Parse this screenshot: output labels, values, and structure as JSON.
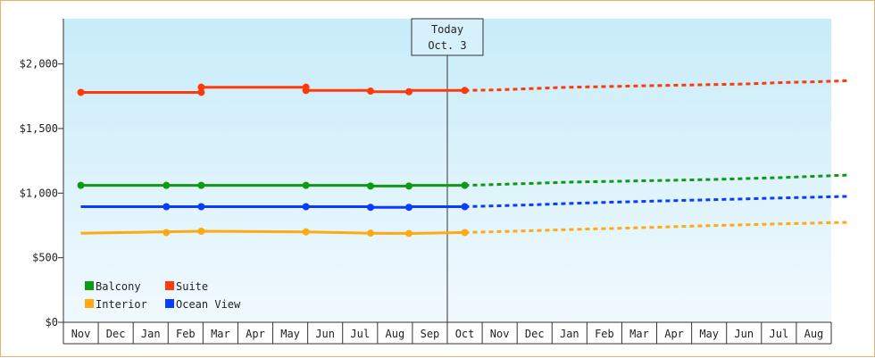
{
  "chart_data": {
    "type": "line",
    "title": "",
    "xlabel": "",
    "ylabel": "",
    "ylim": [
      0,
      2350
    ],
    "y_ticks": [
      {
        "value": 0,
        "label": "$0"
      },
      {
        "value": 500,
        "label": "$500"
      },
      {
        "value": 1000,
        "label": "$1,000"
      },
      {
        "value": 1500,
        "label": "$1,500"
      },
      {
        "value": 2000,
        "label": "$2,000"
      }
    ],
    "month_labels": [
      "Nov",
      "Dec",
      "Jan",
      "Feb",
      "Mar",
      "Apr",
      "May",
      "Jun",
      "Jul",
      "Aug",
      "Sep",
      "Oct",
      "Nov",
      "Dec",
      "Jan",
      "Feb",
      "Mar",
      "Apr",
      "May",
      "Jun",
      "Jul",
      "Aug"
    ],
    "today": {
      "line1": "Today",
      "line2": "Oct. 3",
      "month_index": 11
    },
    "background_gradient": [
      "#c8ecf9",
      "#f1f9fe"
    ],
    "legend": {
      "placement": "bottom-left",
      "entries": [
        {
          "name": "Balcony",
          "color": "#0e9a12"
        },
        {
          "name": "Suite",
          "color": "#ff3a0a"
        },
        {
          "name": "Interior",
          "color": "#ffaa11"
        },
        {
          "name": "Ocean View",
          "color": "#0a3cff"
        }
      ]
    },
    "series": [
      {
        "name": "Suite",
        "color": "#ff3a0a",
        "actual": [
          [
            0,
            1780
          ],
          [
            3.45,
            1780
          ],
          [
            3.45,
            1820
          ],
          [
            6.45,
            1820
          ],
          [
            6.45,
            1795
          ],
          [
            8.3,
            1795
          ],
          [
            8.3,
            1785
          ],
          [
            9.4,
            1785
          ],
          [
            9.4,
            1795
          ],
          [
            11,
            1795
          ]
        ],
        "markers": [
          [
            0,
            1780
          ],
          [
            3.45,
            1780
          ],
          [
            3.45,
            1820
          ],
          [
            6.45,
            1820
          ],
          [
            6.45,
            1795
          ],
          [
            8.3,
            1790
          ],
          [
            9.4,
            1785
          ],
          [
            11,
            1795
          ]
        ],
        "forecast": [
          [
            11,
            1795
          ],
          [
            12,
            1800
          ],
          [
            13,
            1810
          ],
          [
            14,
            1820
          ],
          [
            15,
            1825
          ],
          [
            16,
            1830
          ],
          [
            17,
            1835
          ],
          [
            18,
            1840
          ],
          [
            19,
            1845
          ],
          [
            20,
            1855
          ],
          [
            21,
            1862
          ],
          [
            22,
            1870
          ]
        ]
      },
      {
        "name": "Balcony",
        "color": "#0e9a12",
        "actual": [
          [
            0,
            1060
          ],
          [
            8.3,
            1060
          ],
          [
            8.3,
            1055
          ],
          [
            9.4,
            1055
          ],
          [
            9.4,
            1060
          ],
          [
            11,
            1060
          ]
        ],
        "markers": [
          [
            0,
            1060
          ],
          [
            2.45,
            1060
          ],
          [
            3.45,
            1060
          ],
          [
            6.45,
            1060
          ],
          [
            8.3,
            1055
          ],
          [
            9.4,
            1055
          ],
          [
            11,
            1060
          ]
        ],
        "forecast": [
          [
            11,
            1060
          ],
          [
            12,
            1068
          ],
          [
            13,
            1076
          ],
          [
            14,
            1085
          ],
          [
            15,
            1090
          ],
          [
            16,
            1095
          ],
          [
            17,
            1100
          ],
          [
            18,
            1105
          ],
          [
            19,
            1112
          ],
          [
            20,
            1120
          ],
          [
            21,
            1130
          ],
          [
            22,
            1140
          ]
        ]
      },
      {
        "name": "Ocean View",
        "color": "#0a3cff",
        "actual": [
          [
            0,
            895
          ],
          [
            8.3,
            895
          ],
          [
            8.3,
            890
          ],
          [
            9.4,
            890
          ],
          [
            9.4,
            895
          ],
          [
            11,
            895
          ]
        ],
        "markers": [
          [
            2.45,
            895
          ],
          [
            3.45,
            895
          ],
          [
            6.45,
            895
          ],
          [
            8.3,
            890
          ],
          [
            9.4,
            890
          ],
          [
            11,
            895
          ]
        ],
        "forecast": [
          [
            11,
            895
          ],
          [
            12,
            902
          ],
          [
            13,
            910
          ],
          [
            14,
            920
          ],
          [
            15,
            928
          ],
          [
            16,
            935
          ],
          [
            17,
            942
          ],
          [
            18,
            948
          ],
          [
            19,
            955
          ],
          [
            20,
            962
          ],
          [
            21,
            968
          ],
          [
            22,
            975
          ]
        ]
      },
      {
        "name": "Interior",
        "color": "#ffaa11",
        "actual": [
          [
            0,
            690
          ],
          [
            3.45,
            705
          ],
          [
            6.45,
            700
          ],
          [
            8.3,
            690
          ],
          [
            9.4,
            688
          ],
          [
            11,
            695
          ]
        ],
        "markers": [
          [
            2.45,
            695
          ],
          [
            3.45,
            705
          ],
          [
            6.45,
            700
          ],
          [
            8.3,
            690
          ],
          [
            9.4,
            688
          ],
          [
            11,
            695
          ]
        ],
        "forecast": [
          [
            11,
            695
          ],
          [
            12,
            702
          ],
          [
            13,
            710
          ],
          [
            14,
            718
          ],
          [
            15,
            725
          ],
          [
            16,
            732
          ],
          [
            17,
            740
          ],
          [
            18,
            748
          ],
          [
            19,
            755
          ],
          [
            20,
            762
          ],
          [
            21,
            768
          ],
          [
            22,
            775
          ]
        ]
      }
    ]
  }
}
